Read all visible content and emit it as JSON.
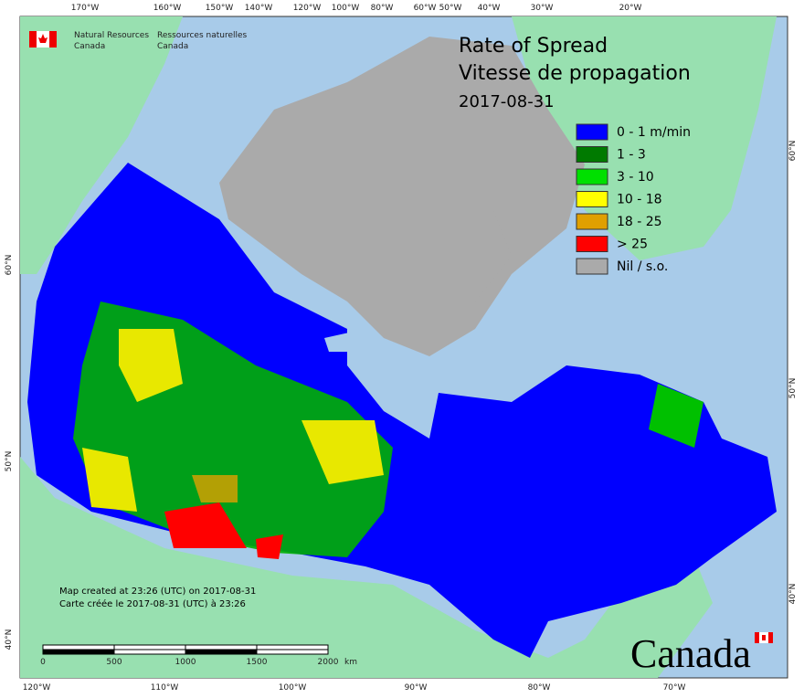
{
  "header": {
    "department_en": [
      "Natural Resources",
      "Canada"
    ],
    "department_fr": [
      "Ressources naturelles",
      "Canada"
    ]
  },
  "title": {
    "lines": [
      "Rate of Spread",
      "Vitesse de propagation",
      "2017-08-31"
    ]
  },
  "legend": [
    {
      "label": "0 - 1 m/min",
      "color": "#0000ff"
    },
    {
      "label": "1 - 3",
      "color": "#007a00"
    },
    {
      "label": "3 - 10",
      "color": "#00e000"
    },
    {
      "label": "10 - 18",
      "color": "#ffff00"
    },
    {
      "label": "18 - 25",
      "color": "#e0a000"
    },
    {
      "label": "> 25",
      "color": "#ff0000"
    },
    {
      "label": "Nil / s.o.",
      "color": "#aaaaaa"
    }
  ],
  "graticule": {
    "top": [
      "170°W",
      "160°W",
      "150°W",
      "140°W",
      "120°W",
      "100°W",
      "80°W",
      "60°W",
      "50°W",
      "40°W",
      "30°W",
      "20°W"
    ],
    "bottom": [
      "120°W",
      "110°W",
      "100°W",
      "90°W",
      "80°W",
      "70°W"
    ],
    "left": [
      "60°N",
      "50°N",
      "40°N"
    ],
    "right": [
      "60°N",
      "50°N",
      "40°N"
    ]
  },
  "notes": [
    "Map created at 23:26 (UTC) on 2017-08-31",
    "Carte créée le 2017-08-31 (UTC) à 23:26"
  ],
  "scale": {
    "ticks": [
      0,
      500,
      1000,
      1500,
      2000
    ],
    "unit": "km"
  },
  "wordmark": "Canada"
}
